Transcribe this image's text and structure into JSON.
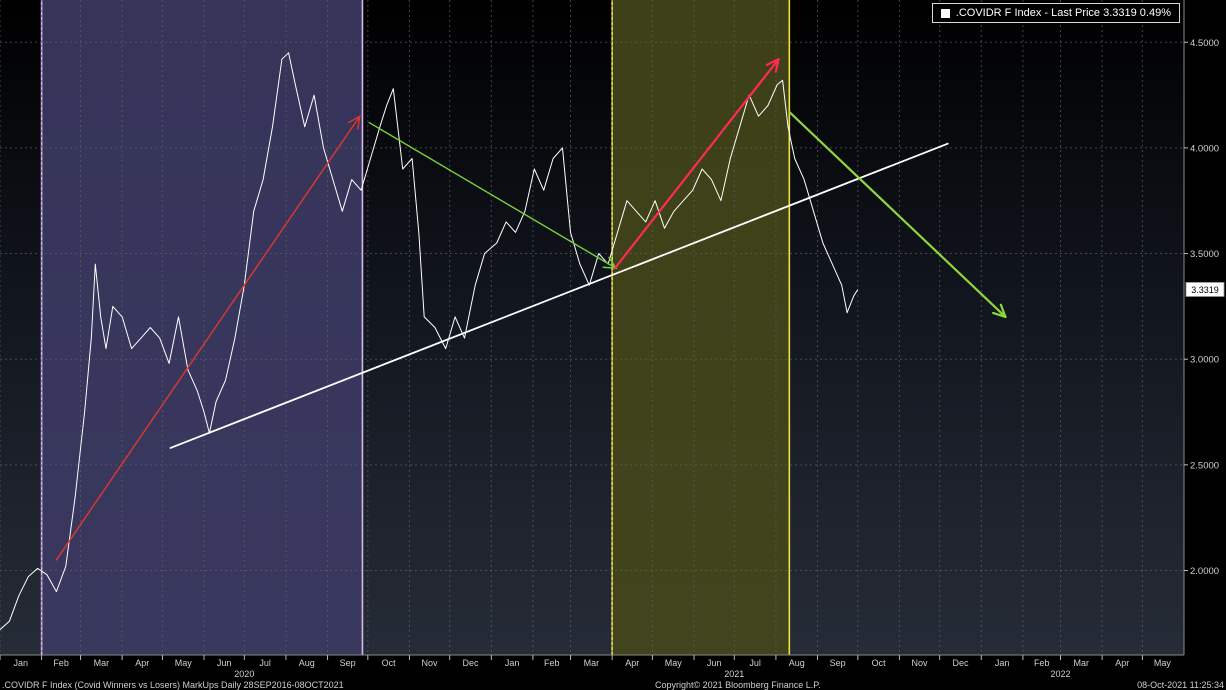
{
  "legend": {
    "label": ".COVIDR F Index - Last Price 3.3319  0.49%"
  },
  "footer": {
    "left": ".COVIDR F Index (Covid Winners vs Losers) MarkUps  Daily 28SEP2016-08OCT2021",
    "center": "Copyright© 2021 Bloomberg Finance L.P.",
    "right": "08-Oct-2021 11:25:34"
  },
  "chart_data": {
    "type": "line",
    "title": "",
    "xlabel": "",
    "ylabel": "",
    "ylim": [
      1.6,
      4.7
    ],
    "xlim": [
      "2020-01-01",
      "2022-06-01"
    ],
    "grid": true,
    "legend_position": "top-right",
    "last_price_label": "3.3319",
    "y_ticks": [
      "2.0000",
      "2.5000",
      "3.0000",
      "3.5000",
      "4.0000",
      "4.5000"
    ],
    "x_tick_labels": [
      {
        "label": "Jan",
        "date": "2020-01-01"
      },
      {
        "label": "Feb",
        "date": "2020-02-01"
      },
      {
        "label": "Mar",
        "date": "2020-03-01"
      },
      {
        "label": "Apr",
        "date": "2020-04-01"
      },
      {
        "label": "May",
        "date": "2020-05-01"
      },
      {
        "label": "Jun",
        "date": "2020-06-01"
      },
      {
        "label": "Jul",
        "date": "2020-07-01"
      },
      {
        "label": "Aug",
        "date": "2020-08-01"
      },
      {
        "label": "Sep",
        "date": "2020-09-01"
      },
      {
        "label": "Oct",
        "date": "2020-10-01"
      },
      {
        "label": "Nov",
        "date": "2020-11-01"
      },
      {
        "label": "Dec",
        "date": "2020-12-01"
      },
      {
        "label": "Jan",
        "date": "2021-01-01"
      },
      {
        "label": "Feb",
        "date": "2021-02-01"
      },
      {
        "label": "Mar",
        "date": "2021-03-01"
      },
      {
        "label": "Apr",
        "date": "2021-04-01"
      },
      {
        "label": "May",
        "date": "2021-05-01"
      },
      {
        "label": "Jun",
        "date": "2021-06-01"
      },
      {
        "label": "Jul",
        "date": "2021-07-01"
      },
      {
        "label": "Aug",
        "date": "2021-08-01"
      },
      {
        "label": "Sep",
        "date": "2021-09-01"
      },
      {
        "label": "Oct",
        "date": "2021-10-01"
      },
      {
        "label": "Nov",
        "date": "2021-11-01"
      },
      {
        "label": "Dec",
        "date": "2021-12-01"
      },
      {
        "label": "Jan",
        "date": "2022-01-01"
      },
      {
        "label": "Feb",
        "date": "2022-02-01"
      },
      {
        "label": "Mar",
        "date": "2022-03-01"
      },
      {
        "label": "Apr",
        "date": "2022-04-01"
      },
      {
        "label": "May",
        "date": "2022-05-01"
      }
    ],
    "year_labels": [
      {
        "label": "2020",
        "date": "2020-07-01"
      },
      {
        "label": "2021",
        "date": "2021-07-01"
      },
      {
        "label": "2022",
        "date": "2022-03-01"
      }
    ],
    "series": [
      {
        "color": "#ffffff",
        "points": [
          [
            "2020-01-01",
            1.72
          ],
          [
            "2020-01-08",
            1.76
          ],
          [
            "2020-01-15",
            1.88
          ],
          [
            "2020-01-22",
            1.97
          ],
          [
            "2020-01-29",
            2.01
          ],
          [
            "2020-02-05",
            1.98
          ],
          [
            "2020-02-12",
            1.9
          ],
          [
            "2020-02-19",
            2.02
          ],
          [
            "2020-02-26",
            2.35
          ],
          [
            "2020-03-04",
            2.75
          ],
          [
            "2020-03-09",
            3.1
          ],
          [
            "2020-03-12",
            3.45
          ],
          [
            "2020-03-16",
            3.2
          ],
          [
            "2020-03-20",
            3.05
          ],
          [
            "2020-03-25",
            3.25
          ],
          [
            "2020-04-01",
            3.2
          ],
          [
            "2020-04-08",
            3.05
          ],
          [
            "2020-04-15",
            3.1
          ],
          [
            "2020-04-22",
            3.15
          ],
          [
            "2020-04-29",
            3.1
          ],
          [
            "2020-05-06",
            2.98
          ],
          [
            "2020-05-13",
            3.2
          ],
          [
            "2020-05-20",
            2.95
          ],
          [
            "2020-05-27",
            2.85
          ],
          [
            "2020-06-01",
            2.75
          ],
          [
            "2020-06-05",
            2.65
          ],
          [
            "2020-06-10",
            2.8
          ],
          [
            "2020-06-17",
            2.9
          ],
          [
            "2020-06-24",
            3.1
          ],
          [
            "2020-07-01",
            3.35
          ],
          [
            "2020-07-08",
            3.7
          ],
          [
            "2020-07-15",
            3.85
          ],
          [
            "2020-07-22",
            4.1
          ],
          [
            "2020-07-29",
            4.42
          ],
          [
            "2020-08-03",
            4.45
          ],
          [
            "2020-08-08",
            4.3
          ],
          [
            "2020-08-15",
            4.1
          ],
          [
            "2020-08-22",
            4.25
          ],
          [
            "2020-08-29",
            4.0
          ],
          [
            "2020-09-05",
            3.85
          ],
          [
            "2020-09-12",
            3.7
          ],
          [
            "2020-09-19",
            3.85
          ],
          [
            "2020-09-26",
            3.8
          ],
          [
            "2020-10-03",
            3.95
          ],
          [
            "2020-10-10",
            4.1
          ],
          [
            "2020-10-15",
            4.2
          ],
          [
            "2020-10-20",
            4.28
          ],
          [
            "2020-10-27",
            3.9
          ],
          [
            "2020-11-03",
            3.95
          ],
          [
            "2020-11-08",
            3.6
          ],
          [
            "2020-11-12",
            3.2
          ],
          [
            "2020-11-20",
            3.15
          ],
          [
            "2020-11-28",
            3.05
          ],
          [
            "2020-12-05",
            3.2
          ],
          [
            "2020-12-12",
            3.1
          ],
          [
            "2020-12-20",
            3.35
          ],
          [
            "2020-12-27",
            3.5
          ],
          [
            "2021-01-05",
            3.55
          ],
          [
            "2021-01-12",
            3.65
          ],
          [
            "2021-01-19",
            3.6
          ],
          [
            "2021-01-26",
            3.7
          ],
          [
            "2021-02-02",
            3.9
          ],
          [
            "2021-02-09",
            3.8
          ],
          [
            "2021-02-16",
            3.95
          ],
          [
            "2021-02-23",
            4.0
          ],
          [
            "2021-03-01",
            3.6
          ],
          [
            "2021-03-08",
            3.45
          ],
          [
            "2021-03-15",
            3.35
          ],
          [
            "2021-03-22",
            3.5
          ],
          [
            "2021-03-29",
            3.45
          ],
          [
            "2021-04-05",
            3.6
          ],
          [
            "2021-04-12",
            3.75
          ],
          [
            "2021-04-19",
            3.7
          ],
          [
            "2021-04-26",
            3.65
          ],
          [
            "2021-05-03",
            3.75
          ],
          [
            "2021-05-10",
            3.62
          ],
          [
            "2021-05-17",
            3.7
          ],
          [
            "2021-05-24",
            3.75
          ],
          [
            "2021-05-31",
            3.8
          ],
          [
            "2021-06-07",
            3.9
          ],
          [
            "2021-06-14",
            3.85
          ],
          [
            "2021-06-21",
            3.75
          ],
          [
            "2021-06-28",
            3.95
          ],
          [
            "2021-07-05",
            4.1
          ],
          [
            "2021-07-12",
            4.25
          ],
          [
            "2021-07-19",
            4.15
          ],
          [
            "2021-07-26",
            4.2
          ],
          [
            "2021-08-02",
            4.3
          ],
          [
            "2021-08-06",
            4.32
          ],
          [
            "2021-08-10",
            4.1
          ],
          [
            "2021-08-15",
            3.95
          ],
          [
            "2021-08-22",
            3.85
          ],
          [
            "2021-08-29",
            3.7
          ],
          [
            "2021-09-05",
            3.55
          ],
          [
            "2021-09-12",
            3.45
          ],
          [
            "2021-09-19",
            3.35
          ],
          [
            "2021-09-23",
            3.22
          ],
          [
            "2021-09-28",
            3.3
          ],
          [
            "2021-10-01",
            3.33
          ]
        ]
      }
    ],
    "shaded_regions": [
      {
        "start": "2020-02-01",
        "end": "2020-09-27",
        "fill": "#3c3a63",
        "edge": "#d9b6f0"
      },
      {
        "start": "2021-04-01",
        "end": "2021-08-11",
        "fill": "#45471a",
        "edge": "#f2e04a"
      }
    ],
    "annotation_lines": [
      {
        "color": "#e0382f",
        "width": 1.4,
        "arrow": true,
        "start": [
          "2020-02-12",
          2.05
        ],
        "end": [
          "2020-09-25",
          4.15
        ]
      },
      {
        "color": "#ffffff",
        "width": 1.8,
        "arrow": false,
        "start": [
          "2020-05-07",
          2.58
        ],
        "end": [
          "2021-12-07",
          4.02
        ]
      },
      {
        "color": "#76d13b",
        "width": 1.4,
        "arrow": true,
        "start": [
          "2020-10-02",
          4.12
        ],
        "end": [
          "2021-04-04",
          3.43
        ]
      },
      {
        "color": "#ff2a55",
        "width": 2.2,
        "arrow": true,
        "start": [
          "2021-04-03",
          3.43
        ],
        "end": [
          "2021-08-03",
          4.42
        ]
      },
      {
        "color": "#8ed63b",
        "width": 2.2,
        "arrow": true,
        "start": [
          "2021-08-11",
          4.17
        ],
        "end": [
          "2022-01-19",
          3.2
        ]
      }
    ]
  }
}
